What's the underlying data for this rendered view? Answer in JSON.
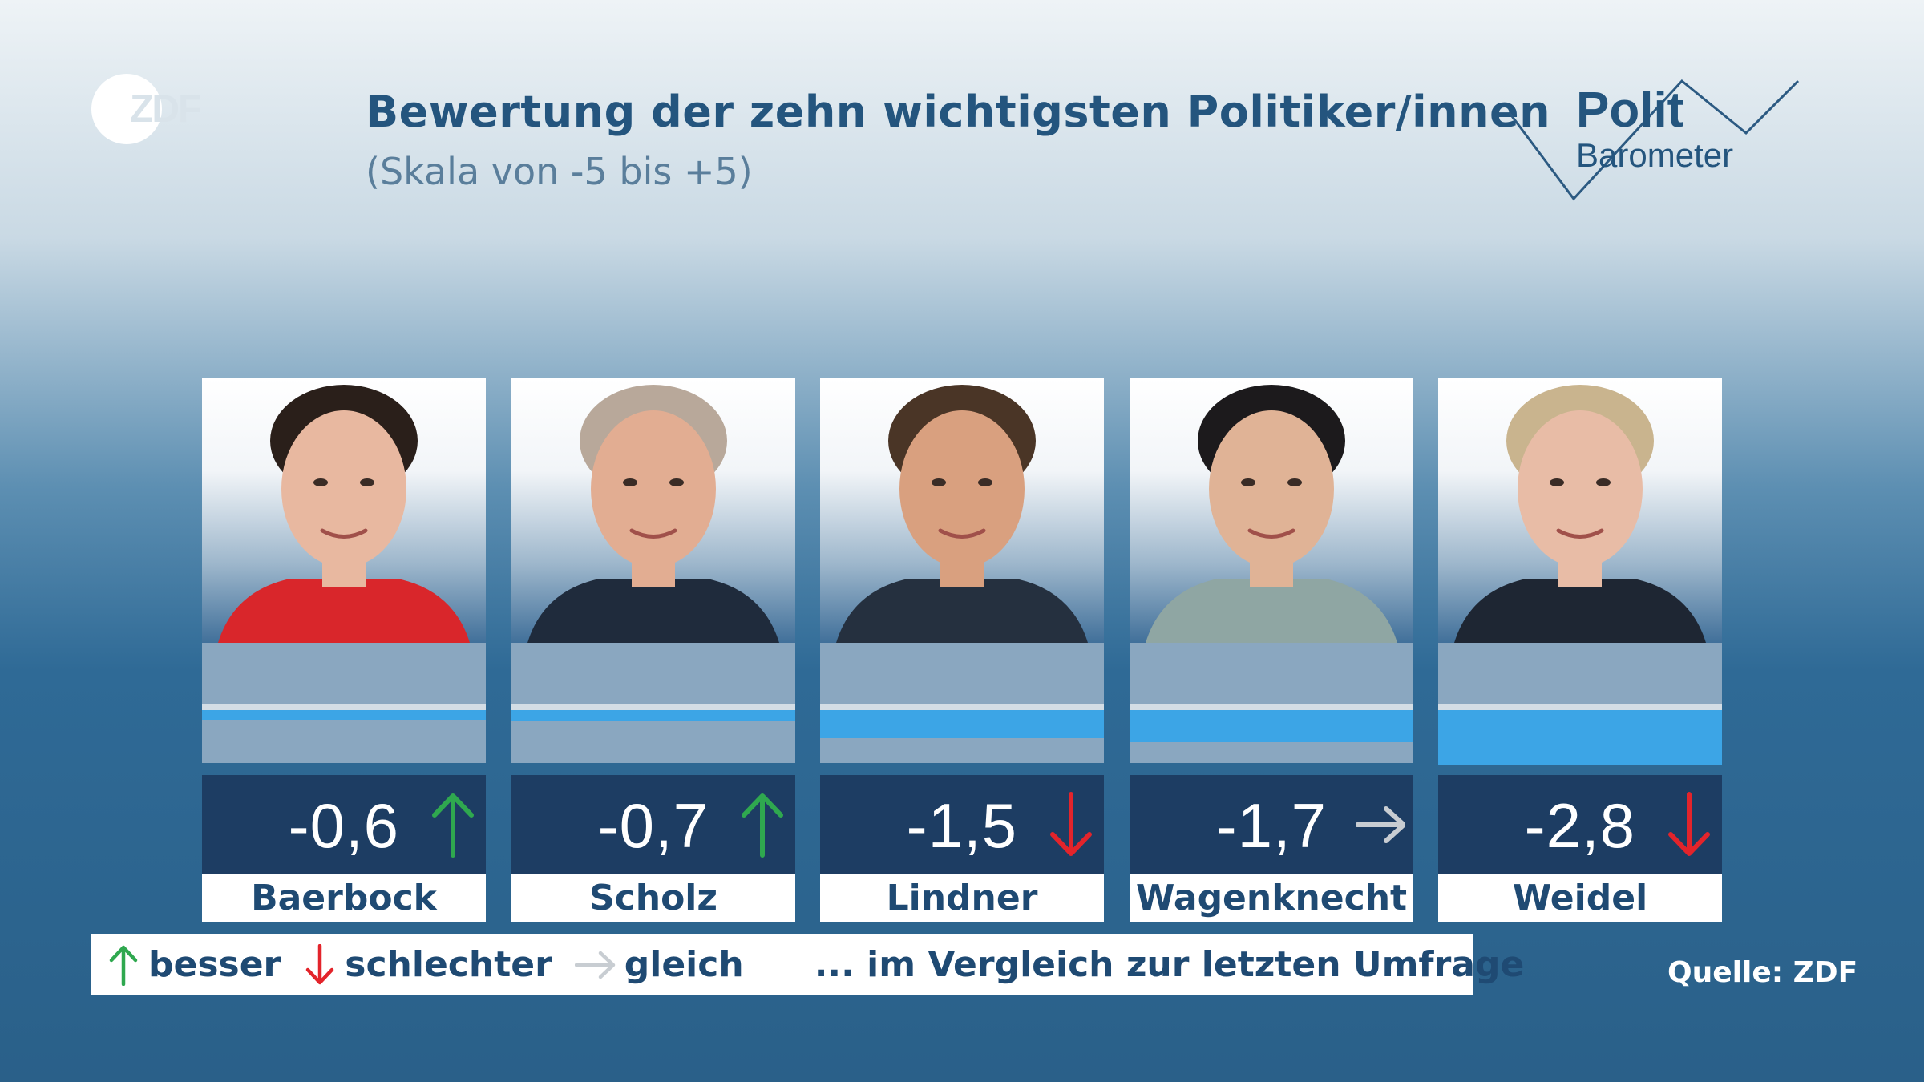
{
  "header": {
    "title": "Bewertung der zehn wichtigsten Politiker/innen",
    "subtitle": "(Skala von -5 bis +5)",
    "brand_logo": "ZDF",
    "show_logo_line1": "Polit",
    "show_logo_line2": "Barometer"
  },
  "colors": {
    "bar": "#3ca5e6",
    "value_box": "#1d3d63",
    "title": "#24557e",
    "arrow_up": "#2fa84f",
    "arrow_down": "#e3242b",
    "arrow_same": "#c8cdd2"
  },
  "chart_data": {
    "type": "bar",
    "title": "Bewertung der zehn wichtigsten Politiker/innen",
    "subtitle": "(Skala von -5 bis +5)",
    "scale": [
      -5,
      5
    ],
    "categories": [
      "Baerbock",
      "Scholz",
      "Lindner",
      "Wagenknecht",
      "Weidel"
    ],
    "values": [
      -0.6,
      -0.7,
      -1.5,
      -1.7,
      -2.8
    ],
    "value_labels": [
      "-0,6",
      "-0,7",
      "-1,5",
      "-1,7",
      "-2,8"
    ],
    "trends": [
      "up",
      "up",
      "down",
      "same",
      "down"
    ]
  },
  "legend": {
    "items": [
      {
        "icon": "arrow-up-icon",
        "label": "besser"
      },
      {
        "icon": "arrow-down-icon",
        "label": "schlechter"
      },
      {
        "icon": "arrow-right-icon",
        "label": "gleich"
      }
    ],
    "note": "... im Vergleich zur letzten Umfrage"
  },
  "source": "Quelle: ZDF"
}
